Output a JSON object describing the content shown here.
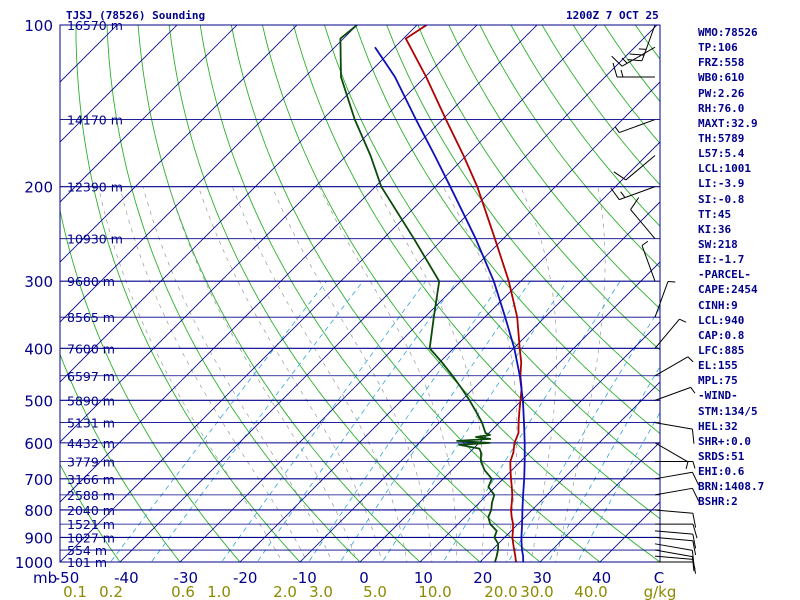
{
  "header": {
    "station": "TJSJ (78526) Sounding",
    "time": "1200Z  7 OCT 25"
  },
  "colors": {
    "frame": "#00008b",
    "isobar": "#00008b",
    "isotherm": "#00008b",
    "dry_adiabat": "#2db02d",
    "moist_adiabat": "#9a9a9a",
    "mixing_ratio": "#33a5d6",
    "temperature": "#b00000",
    "dewpoint": "#0a4a0a",
    "parcel": "#1010b8",
    "wind": "#000000",
    "mixing_ratio_labels": "#8b8a00"
  },
  "indices": [
    "WMO:78526",
    "TP:106",
    "FRZ:558",
    "WB0:610",
    "PW:2.26",
    "RH:76.0",
    "MAXT:32.9",
    "TH:5789",
    "L57:5.4",
    "LCL:1001",
    "LI:-3.9",
    "SI:-0.8",
    "TT:45",
    "KI:36",
    "SW:218",
    "EI:-1.7",
    "-PARCEL-",
    "CAPE:2454",
    "CINH:9",
    "LCL:940",
    "CAP:0.8",
    "LFC:885",
    "EL:155",
    "MPL:75",
    "-WIND-",
    "STM:134/5",
    "HEL:32",
    "SHR+:0.0",
    "SRDS:51",
    "EHI:0.6",
    "BRN:1408.7",
    "BSHR:2"
  ],
  "chart_data": {
    "type": "line",
    "title": "TJSJ (78526) Sounding",
    "subtitle": "1200Z  7 OCT 25",
    "ylabel": "mb",
    "xlabel": "C",
    "mixing_ratio_unit": "g/kg",
    "pressure_range": [
      1000,
      100
    ],
    "temperature_range": [
      -50,
      50
    ],
    "pressure_ticks": [
      100,
      200,
      300,
      400,
      500,
      600,
      700,
      800,
      900,
      1000
    ],
    "temperature_ticks": [
      "-50",
      "-40",
      "-30",
      "-20",
      "-10",
      "0",
      "10",
      "20",
      "30",
      "40"
    ],
    "mixing_ratio_labels": [
      {
        "text": "0.1",
        "t": -45
      },
      {
        "text": "0.2",
        "t": -39
      },
      {
        "text": "0.6",
        "t": -27
      },
      {
        "text": "1.0",
        "t": -21
      },
      {
        "text": "2.0",
        "t": -10
      },
      {
        "text": "3.0",
        "t": -4
      },
      {
        "text": "5.0",
        "t": 5
      },
      {
        "text": "10.0",
        "t": 15
      },
      {
        "text": "20.0",
        "t": 26
      },
      {
        "text": "30.0",
        "t": 32
      },
      {
        "text": "40.0",
        "t": 41
      }
    ],
    "heights": [
      {
        "p": 100,
        "label": "16570 m"
      },
      {
        "p": 150,
        "label": "14170 m"
      },
      {
        "p": 200,
        "label": "12390 m"
      },
      {
        "p": 250,
        "label": "10930 m"
      },
      {
        "p": 300,
        "label": "9680 m"
      },
      {
        "p": 350,
        "label": "8565 m"
      },
      {
        "p": 400,
        "label": "7600 m"
      },
      {
        "p": 450,
        "label": "6597 m"
      },
      {
        "p": 500,
        "label": "5890 m"
      },
      {
        "p": 550,
        "label": "5131 m"
      },
      {
        "p": 600,
        "label": "4432 m"
      },
      {
        "p": 650,
        "label": "3779 m"
      },
      {
        "p": 700,
        "label": "3166 m"
      },
      {
        "p": 750,
        "label": "2588 m"
      },
      {
        "p": 800,
        "label": "2040 m"
      },
      {
        "p": 850,
        "label": "1521 m"
      },
      {
        "p": 900,
        "label": "1027 m"
      },
      {
        "p": 950,
        "label": "554 m"
      },
      {
        "p": 1000,
        "label": "101 m"
      }
    ],
    "series": [
      {
        "name": "Temperature",
        "points": [
          [
            1010,
            28.6
          ],
          [
            1000,
            26.0
          ],
          [
            975,
            24.9
          ],
          [
            950,
            23.7
          ],
          [
            925,
            22.5
          ],
          [
            900,
            21.3
          ],
          [
            875,
            20.3
          ],
          [
            850,
            19.2
          ],
          [
            825,
            17.8
          ],
          [
            800,
            16.5
          ],
          [
            775,
            15.4
          ],
          [
            750,
            14.2
          ],
          [
            725,
            12.8
          ],
          [
            700,
            11.3
          ],
          [
            675,
            9.8
          ],
          [
            650,
            8.3
          ],
          [
            625,
            7.3
          ],
          [
            600,
            5.9
          ],
          [
            575,
            4.9
          ],
          [
            550,
            3.2
          ],
          [
            525,
            1.5
          ],
          [
            500,
            -0.2
          ],
          [
            475,
            -2.0
          ],
          [
            450,
            -4.3
          ],
          [
            425,
            -6.4
          ],
          [
            400,
            -9.0
          ],
          [
            350,
            -14.6
          ],
          [
            300,
            -22.0
          ],
          [
            250,
            -31.4
          ],
          [
            200,
            -43.0
          ],
          [
            175,
            -50.5
          ],
          [
            150,
            -59.4
          ],
          [
            125,
            -69.8
          ],
          [
            106,
            -79.6
          ],
          [
            100,
            -78.4
          ]
        ]
      },
      {
        "name": "Dewpoint",
        "points": [
          [
            1010,
            23.5
          ],
          [
            1000,
            22.5
          ],
          [
            975,
            21.8
          ],
          [
            950,
            21.0
          ],
          [
            925,
            20.0
          ],
          [
            900,
            18.3
          ],
          [
            875,
            17.6
          ],
          [
            850,
            15.4
          ],
          [
            825,
            13.9
          ],
          [
            800,
            13.2
          ],
          [
            775,
            12.1
          ],
          [
            750,
            11.2
          ],
          [
            725,
            8.9
          ],
          [
            700,
            8.1
          ],
          [
            675,
            5.5
          ],
          [
            650,
            3.4
          ],
          [
            625,
            1.9
          ],
          [
            615,
            1.0
          ],
          [
            605,
            -3.0
          ],
          [
            600,
            1.8
          ],
          [
            595,
            -4.0
          ],
          [
            590,
            1.2
          ],
          [
            585,
            -1.5
          ],
          [
            580,
            0.5
          ],
          [
            575,
            -0.6
          ],
          [
            550,
            -2.9
          ],
          [
            525,
            -5.7
          ],
          [
            500,
            -8.7
          ],
          [
            475,
            -12.0
          ],
          [
            450,
            -15.6
          ],
          [
            425,
            -19.6
          ],
          [
            400,
            -24.0
          ],
          [
            350,
            -28.5
          ],
          [
            300,
            -33.6
          ],
          [
            250,
            -44.9
          ],
          [
            200,
            -59.0
          ],
          [
            175,
            -66.0
          ],
          [
            150,
            -74.6
          ],
          [
            125,
            -84.0
          ],
          [
            106,
            -90.5
          ],
          [
            100,
            -90.0
          ]
        ]
      },
      {
        "name": "Parcel",
        "points": [
          [
            1010,
            28.6
          ],
          [
            1000,
            27.2
          ],
          [
            975,
            26.2
          ],
          [
            950,
            25.0
          ],
          [
            925,
            23.9
          ],
          [
            900,
            22.8
          ],
          [
            850,
            20.7
          ],
          [
            800,
            18.4
          ],
          [
            750,
            16.0
          ],
          [
            700,
            13.5
          ],
          [
            650,
            10.7
          ],
          [
            600,
            7.6
          ],
          [
            550,
            4.1
          ],
          [
            500,
            0.2
          ],
          [
            450,
            -4.4
          ],
          [
            400,
            -9.9
          ],
          [
            350,
            -16.6
          ],
          [
            300,
            -24.5
          ],
          [
            250,
            -34.6
          ],
          [
            200,
            -47.5
          ],
          [
            175,
            -55.3
          ],
          [
            150,
            -64.4
          ],
          [
            125,
            -75.0
          ],
          [
            110,
            -83.3
          ]
        ]
      }
    ],
    "winds": [
      {
        "p": 1000,
        "dir": 90,
        "kt": 5
      },
      {
        "p": 975,
        "dir": 95,
        "kt": 10
      },
      {
        "p": 950,
        "dir": 100,
        "kt": 10
      },
      {
        "p": 925,
        "dir": 100,
        "kt": 10
      },
      {
        "p": 900,
        "dir": 95,
        "kt": 10
      },
      {
        "p": 875,
        "dir": 95,
        "kt": 10
      },
      {
        "p": 850,
        "dir": 90,
        "kt": 10
      },
      {
        "p": 800,
        "dir": 95,
        "kt": 10
      },
      {
        "p": 750,
        "dir": 80,
        "kt": 10
      },
      {
        "p": 700,
        "dir": 80,
        "kt": 10
      },
      {
        "p": 650,
        "dir": 90,
        "kt": 5
      },
      {
        "p": 600,
        "dir": 120,
        "kt": 5
      },
      {
        "p": 550,
        "dir": 100,
        "kt": 10
      },
      {
        "p": 500,
        "dir": 70,
        "kt": 5
      },
      {
        "p": 450,
        "dir": 60,
        "kt": 5
      },
      {
        "p": 400,
        "dir": 40,
        "kt": 5
      },
      {
        "p": 350,
        "dir": 20,
        "kt": 5
      },
      {
        "p": 300,
        "dir": 340,
        "kt": 5
      },
      {
        "p": 250,
        "dir": 320,
        "kt": 10
      },
      {
        "p": 200,
        "dir": 250,
        "kt": 15
      },
      {
        "p": 175,
        "dir": 230,
        "kt": 10
      },
      {
        "p": 150,
        "dir": 250,
        "kt": 5
      },
      {
        "p": 125,
        "dir": 270,
        "kt": 15
      },
      {
        "p": 110,
        "dir": 240,
        "kt": 15
      },
      {
        "p": 100,
        "dir": 200,
        "kt": 25
      }
    ]
  }
}
